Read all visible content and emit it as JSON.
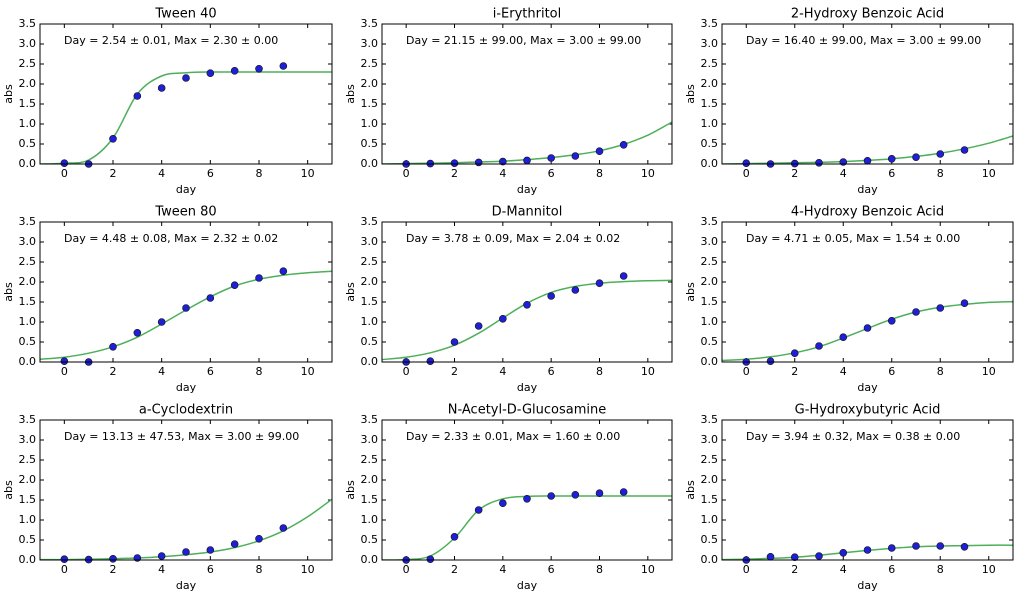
{
  "chart_data": [
    {
      "type": "scatter",
      "title": "Tween 40",
      "annotation": "Day = 2.54 ± 0.01, Max = 2.30 ± 0.00",
      "xlabel": "day",
      "ylabel": "abs",
      "xlim": [
        -1,
        11
      ],
      "ylim": [
        0,
        3.5
      ],
      "xticks": [
        0,
        2,
        4,
        6,
        8,
        10
      ],
      "yticks": [
        {
          "value": 0,
          "label": "0.0"
        },
        {
          "value": 0.5,
          "label": "0.5"
        },
        {
          "value": 1,
          "label": "1.0"
        },
        {
          "value": 1.5,
          "label": "1.5"
        },
        {
          "value": 2,
          "label": "2.0"
        },
        {
          "value": 2.5,
          "label": "2.5"
        },
        {
          "value": 3,
          "label": "3.0"
        },
        {
          "value": 3.5,
          "label": "3.5"
        }
      ],
      "series": [
        {
          "type": "line",
          "color": "#4daf5a",
          "x": [
            -1,
            0,
            1,
            2,
            3,
            4,
            5,
            6,
            7,
            8,
            9,
            10,
            11
          ],
          "values": [
            0,
            0.02,
            0.1,
            0.65,
            1.75,
            2.2,
            2.28,
            2.3,
            2.3,
            2.3,
            2.3,
            2.3,
            2.3
          ]
        },
        {
          "type": "scatter",
          "color": "#1f1fd6",
          "x": [
            0,
            1,
            2,
            3,
            4,
            5,
            6,
            7,
            8,
            9
          ],
          "values": [
            0.02,
            0,
            0.63,
            1.7,
            1.9,
            2.15,
            2.27,
            2.33,
            2.38,
            2.45
          ]
        }
      ]
    },
    {
      "type": "scatter",
      "title": "i-Erythritol",
      "annotation": "Day = 21.15 ± 99.00, Max = 3.00 ± 99.00",
      "xlabel": "day",
      "ylabel": "abs",
      "xlim": [
        -1,
        11
      ],
      "ylim": [
        0,
        3.5
      ],
      "xticks": [
        0,
        2,
        4,
        6,
        8,
        10
      ],
      "yticks": [
        {
          "value": 0,
          "label": "0.0"
        },
        {
          "value": 0.5,
          "label": "0.5"
        },
        {
          "value": 1,
          "label": "1.0"
        },
        {
          "value": 1.5,
          "label": "1.5"
        },
        {
          "value": 2,
          "label": "2.0"
        },
        {
          "value": 2.5,
          "label": "2.5"
        },
        {
          "value": 3,
          "label": "3.0"
        },
        {
          "value": 3.5,
          "label": "3.5"
        }
      ],
      "series": [
        {
          "type": "line",
          "color": "#4daf5a",
          "x": [
            -1,
            0,
            1,
            2,
            3,
            4,
            5,
            6,
            7,
            8,
            9,
            10,
            11
          ],
          "values": [
            0,
            0.01,
            0.02,
            0.03,
            0.05,
            0.07,
            0.11,
            0.16,
            0.23,
            0.33,
            0.49,
            0.72,
            1.05
          ]
        },
        {
          "type": "scatter",
          "color": "#1f1fd6",
          "x": [
            0,
            1,
            2,
            3,
            4,
            5,
            6,
            7,
            8,
            9
          ],
          "values": [
            0,
            0.01,
            0.02,
            0.04,
            0.06,
            0.09,
            0.15,
            0.2,
            0.32,
            0.48
          ]
        }
      ]
    },
    {
      "type": "scatter",
      "title": "2-Hydroxy Benzoic Acid",
      "annotation": "Day = 16.40 ± 99.00, Max = 3.00 ± 99.00",
      "xlabel": "day",
      "ylabel": "abs",
      "xlim": [
        -1,
        11
      ],
      "ylim": [
        0,
        3.5
      ],
      "xticks": [
        0,
        2,
        4,
        6,
        8,
        10
      ],
      "yticks": [
        {
          "value": 0,
          "label": "0.0"
        },
        {
          "value": 0.5,
          "label": "0.5"
        },
        {
          "value": 1,
          "label": "1.0"
        },
        {
          "value": 1.5,
          "label": "1.5"
        },
        {
          "value": 2,
          "label": "2.0"
        },
        {
          "value": 2.5,
          "label": "2.5"
        },
        {
          "value": 3,
          "label": "3.0"
        },
        {
          "value": 3.5,
          "label": "3.5"
        }
      ],
      "series": [
        {
          "type": "line",
          "color": "#4daf5a",
          "x": [
            -1,
            0,
            1,
            2,
            3,
            4,
            5,
            6,
            7,
            8,
            9,
            10,
            11
          ],
          "values": [
            0,
            0.01,
            0.02,
            0.03,
            0.04,
            0.06,
            0.09,
            0.13,
            0.19,
            0.27,
            0.38,
            0.52,
            0.7
          ]
        },
        {
          "type": "scatter",
          "color": "#1f1fd6",
          "x": [
            0,
            1,
            2,
            3,
            4,
            5,
            6,
            7,
            8,
            9
          ],
          "values": [
            0.02,
            0,
            0.01,
            0.03,
            0.05,
            0.08,
            0.13,
            0.17,
            0.25,
            0.35
          ]
        }
      ]
    },
    {
      "type": "scatter",
      "title": "Tween 80",
      "annotation": "Day = 4.48 ± 0.08, Max = 2.32 ± 0.02",
      "xlabel": "day",
      "ylabel": "abs",
      "xlim": [
        -1,
        11
      ],
      "ylim": [
        0,
        3.5
      ],
      "xticks": [
        0,
        2,
        4,
        6,
        8,
        10
      ],
      "yticks": [
        {
          "value": 0,
          "label": "0.0"
        },
        {
          "value": 0.5,
          "label": "0.5"
        },
        {
          "value": 1,
          "label": "1.0"
        },
        {
          "value": 1.5,
          "label": "1.5"
        },
        {
          "value": 2,
          "label": "2.0"
        },
        {
          "value": 2.5,
          "label": "2.5"
        },
        {
          "value": 3,
          "label": "3.0"
        },
        {
          "value": 3.5,
          "label": "3.5"
        }
      ],
      "series": [
        {
          "type": "line",
          "color": "#4daf5a",
          "x": [
            -1,
            0,
            1,
            2,
            3,
            4,
            5,
            6,
            7,
            8,
            9,
            10,
            11
          ],
          "values": [
            0.07,
            0.12,
            0.22,
            0.38,
            0.62,
            0.95,
            1.3,
            1.63,
            1.9,
            2.07,
            2.17,
            2.23,
            2.27
          ]
        },
        {
          "type": "scatter",
          "color": "#1f1fd6",
          "x": [
            0,
            1,
            2,
            3,
            4,
            5,
            6,
            7,
            8,
            9
          ],
          "values": [
            0.02,
            0,
            0.38,
            0.73,
            1,
            1.35,
            1.6,
            1.92,
            2.1,
            2.27
          ]
        }
      ]
    },
    {
      "type": "scatter",
      "title": "D-Mannitol",
      "annotation": "Day = 3.78 ± 0.09, Max = 2.04 ± 0.02",
      "xlabel": "day",
      "ylabel": "abs",
      "xlim": [
        -1,
        11
      ],
      "ylim": [
        0,
        3.5
      ],
      "xticks": [
        0,
        2,
        4,
        6,
        8,
        10
      ],
      "yticks": [
        {
          "value": 0,
          "label": "0.0"
        },
        {
          "value": 0.5,
          "label": "0.5"
        },
        {
          "value": 1,
          "label": "1.0"
        },
        {
          "value": 1.5,
          "label": "1.5"
        },
        {
          "value": 2,
          "label": "2.0"
        },
        {
          "value": 2.5,
          "label": "2.5"
        },
        {
          "value": 3,
          "label": "3.0"
        },
        {
          "value": 3.5,
          "label": "3.5"
        }
      ],
      "series": [
        {
          "type": "line",
          "color": "#4daf5a",
          "x": [
            -1,
            0,
            1,
            2,
            3,
            4,
            5,
            6,
            7,
            8,
            9,
            10,
            11
          ],
          "values": [
            0.06,
            0.12,
            0.23,
            0.42,
            0.72,
            1.1,
            1.47,
            1.74,
            1.89,
            1.97,
            2.01,
            2.03,
            2.04
          ]
        },
        {
          "type": "scatter",
          "color": "#1f1fd6",
          "x": [
            0,
            1,
            2,
            3,
            4,
            5,
            6,
            7,
            8,
            9
          ],
          "values": [
            0,
            0.02,
            0.5,
            0.9,
            1.08,
            1.43,
            1.65,
            1.8,
            1.97,
            2.15
          ]
        }
      ]
    },
    {
      "type": "scatter",
      "title": "4-Hydroxy Benzoic Acid",
      "annotation": "Day = 4.71 ± 0.05, Max = 1.54 ± 0.00",
      "xlabel": "day",
      "ylabel": "abs",
      "xlim": [
        -1,
        11
      ],
      "ylim": [
        0,
        3.5
      ],
      "xticks": [
        0,
        2,
        4,
        6,
        8,
        10
      ],
      "yticks": [
        {
          "value": 0,
          "label": "0.0"
        },
        {
          "value": 0.5,
          "label": "0.5"
        },
        {
          "value": 1,
          "label": "1.0"
        },
        {
          "value": 1.5,
          "label": "1.5"
        },
        {
          "value": 2,
          "label": "2.0"
        },
        {
          "value": 2.5,
          "label": "2.5"
        },
        {
          "value": 3,
          "label": "3.0"
        },
        {
          "value": 3.5,
          "label": "3.5"
        }
      ],
      "series": [
        {
          "type": "line",
          "color": "#4daf5a",
          "x": [
            -1,
            0,
            1,
            2,
            3,
            4,
            5,
            6,
            7,
            8,
            9,
            10,
            11
          ],
          "values": [
            0.04,
            0.07,
            0.13,
            0.23,
            0.38,
            0.6,
            0.84,
            1.07,
            1.25,
            1.37,
            1.44,
            1.49,
            1.51
          ]
        },
        {
          "type": "scatter",
          "color": "#1f1fd6",
          "x": [
            0,
            1,
            2,
            3,
            4,
            5,
            6,
            7,
            8,
            9
          ],
          "values": [
            0,
            0.02,
            0.22,
            0.4,
            0.62,
            0.85,
            1.03,
            1.25,
            1.35,
            1.47
          ]
        }
      ]
    },
    {
      "type": "scatter",
      "title": "a-Cyclodextrin",
      "annotation": "Day = 13.13 ± 47.53, Max = 3.00 ± 99.00",
      "xlabel": "day",
      "ylabel": "abs",
      "xlim": [
        -1,
        11
      ],
      "ylim": [
        0,
        3.5
      ],
      "xticks": [
        0,
        2,
        4,
        6,
        8,
        10
      ],
      "yticks": [
        {
          "value": 0,
          "label": "0.0"
        },
        {
          "value": 0.5,
          "label": "0.5"
        },
        {
          "value": 1,
          "label": "1.0"
        },
        {
          "value": 1.5,
          "label": "1.5"
        },
        {
          "value": 2,
          "label": "2.0"
        },
        {
          "value": 2.5,
          "label": "2.5"
        },
        {
          "value": 3,
          "label": "3.0"
        },
        {
          "value": 3.5,
          "label": "3.5"
        }
      ],
      "series": [
        {
          "type": "line",
          "color": "#4daf5a",
          "x": [
            -1,
            0,
            1,
            2,
            3,
            4,
            5,
            6,
            7,
            8,
            9,
            10,
            11
          ],
          "values": [
            0.01,
            0.01,
            0.02,
            0.03,
            0.05,
            0.08,
            0.13,
            0.2,
            0.31,
            0.48,
            0.73,
            1.08,
            1.52
          ]
        },
        {
          "type": "scatter",
          "color": "#1f1fd6",
          "x": [
            0,
            1,
            2,
            3,
            4,
            5,
            6,
            7,
            8,
            9
          ],
          "values": [
            0.02,
            0.01,
            0.03,
            0.05,
            0.1,
            0.2,
            0.25,
            0.4,
            0.53,
            0.8
          ]
        }
      ]
    },
    {
      "type": "scatter",
      "title": "N-Acetyl-D-Glucosamine",
      "annotation": "Day = 2.33 ± 0.01, Max = 1.60 ± 0.00",
      "xlabel": "day",
      "ylabel": "abs",
      "xlim": [
        -1,
        11
      ],
      "ylim": [
        0,
        3.5
      ],
      "xticks": [
        0,
        2,
        4,
        6,
        8,
        10
      ],
      "yticks": [
        {
          "value": 0,
          "label": "0.0"
        },
        {
          "value": 0.5,
          "label": "0.5"
        },
        {
          "value": 1,
          "label": "1.0"
        },
        {
          "value": 1.5,
          "label": "1.5"
        },
        {
          "value": 2,
          "label": "2.0"
        },
        {
          "value": 2.5,
          "label": "2.5"
        },
        {
          "value": 3,
          "label": "3.0"
        },
        {
          "value": 3.5,
          "label": "3.5"
        }
      ],
      "series": [
        {
          "type": "line",
          "color": "#4daf5a",
          "x": [
            -1,
            0,
            1,
            2,
            3,
            4,
            5,
            6,
            7,
            8,
            9,
            10,
            11
          ],
          "values": [
            0,
            0.01,
            0.1,
            0.55,
            1.25,
            1.53,
            1.59,
            1.6,
            1.6,
            1.6,
            1.6,
            1.6,
            1.6
          ]
        },
        {
          "type": "scatter",
          "color": "#1f1fd6",
          "x": [
            0,
            1,
            2,
            3,
            4,
            5,
            6,
            7,
            8,
            9
          ],
          "values": [
            0,
            0.02,
            0.58,
            1.25,
            1.42,
            1.53,
            1.6,
            1.63,
            1.67,
            1.7
          ]
        }
      ]
    },
    {
      "type": "scatter",
      "title": "G-Hydroxybutyric Acid",
      "annotation": "Day = 3.94 ± 0.32, Max = 0.38 ± 0.00",
      "xlabel": "day",
      "ylabel": "abs",
      "xlim": [
        -1,
        11
      ],
      "ylim": [
        0,
        3.5
      ],
      "xticks": [
        0,
        2,
        4,
        6,
        8,
        10
      ],
      "yticks": [
        {
          "value": 0,
          "label": "0.0"
        },
        {
          "value": 0.5,
          "label": "0.5"
        },
        {
          "value": 1,
          "label": "1.0"
        },
        {
          "value": 1.5,
          "label": "1.5"
        },
        {
          "value": 2,
          "label": "2.0"
        },
        {
          "value": 2.5,
          "label": "2.5"
        },
        {
          "value": 3,
          "label": "3.0"
        },
        {
          "value": 3.5,
          "label": "3.5"
        }
      ],
      "series": [
        {
          "type": "line",
          "color": "#4daf5a",
          "x": [
            -1,
            0,
            1,
            2,
            3,
            4,
            5,
            6,
            7,
            8,
            9,
            10,
            11
          ],
          "values": [
            0.01,
            0.02,
            0.04,
            0.07,
            0.12,
            0.18,
            0.24,
            0.29,
            0.33,
            0.35,
            0.36,
            0.37,
            0.37
          ]
        },
        {
          "type": "scatter",
          "color": "#1f1fd6",
          "x": [
            0,
            1,
            2,
            3,
            4,
            5,
            6,
            7,
            8,
            9
          ],
          "values": [
            0,
            0.08,
            0.07,
            0.1,
            0.18,
            0.25,
            0.3,
            0.35,
            0.35,
            0.33
          ]
        }
      ]
    }
  ]
}
